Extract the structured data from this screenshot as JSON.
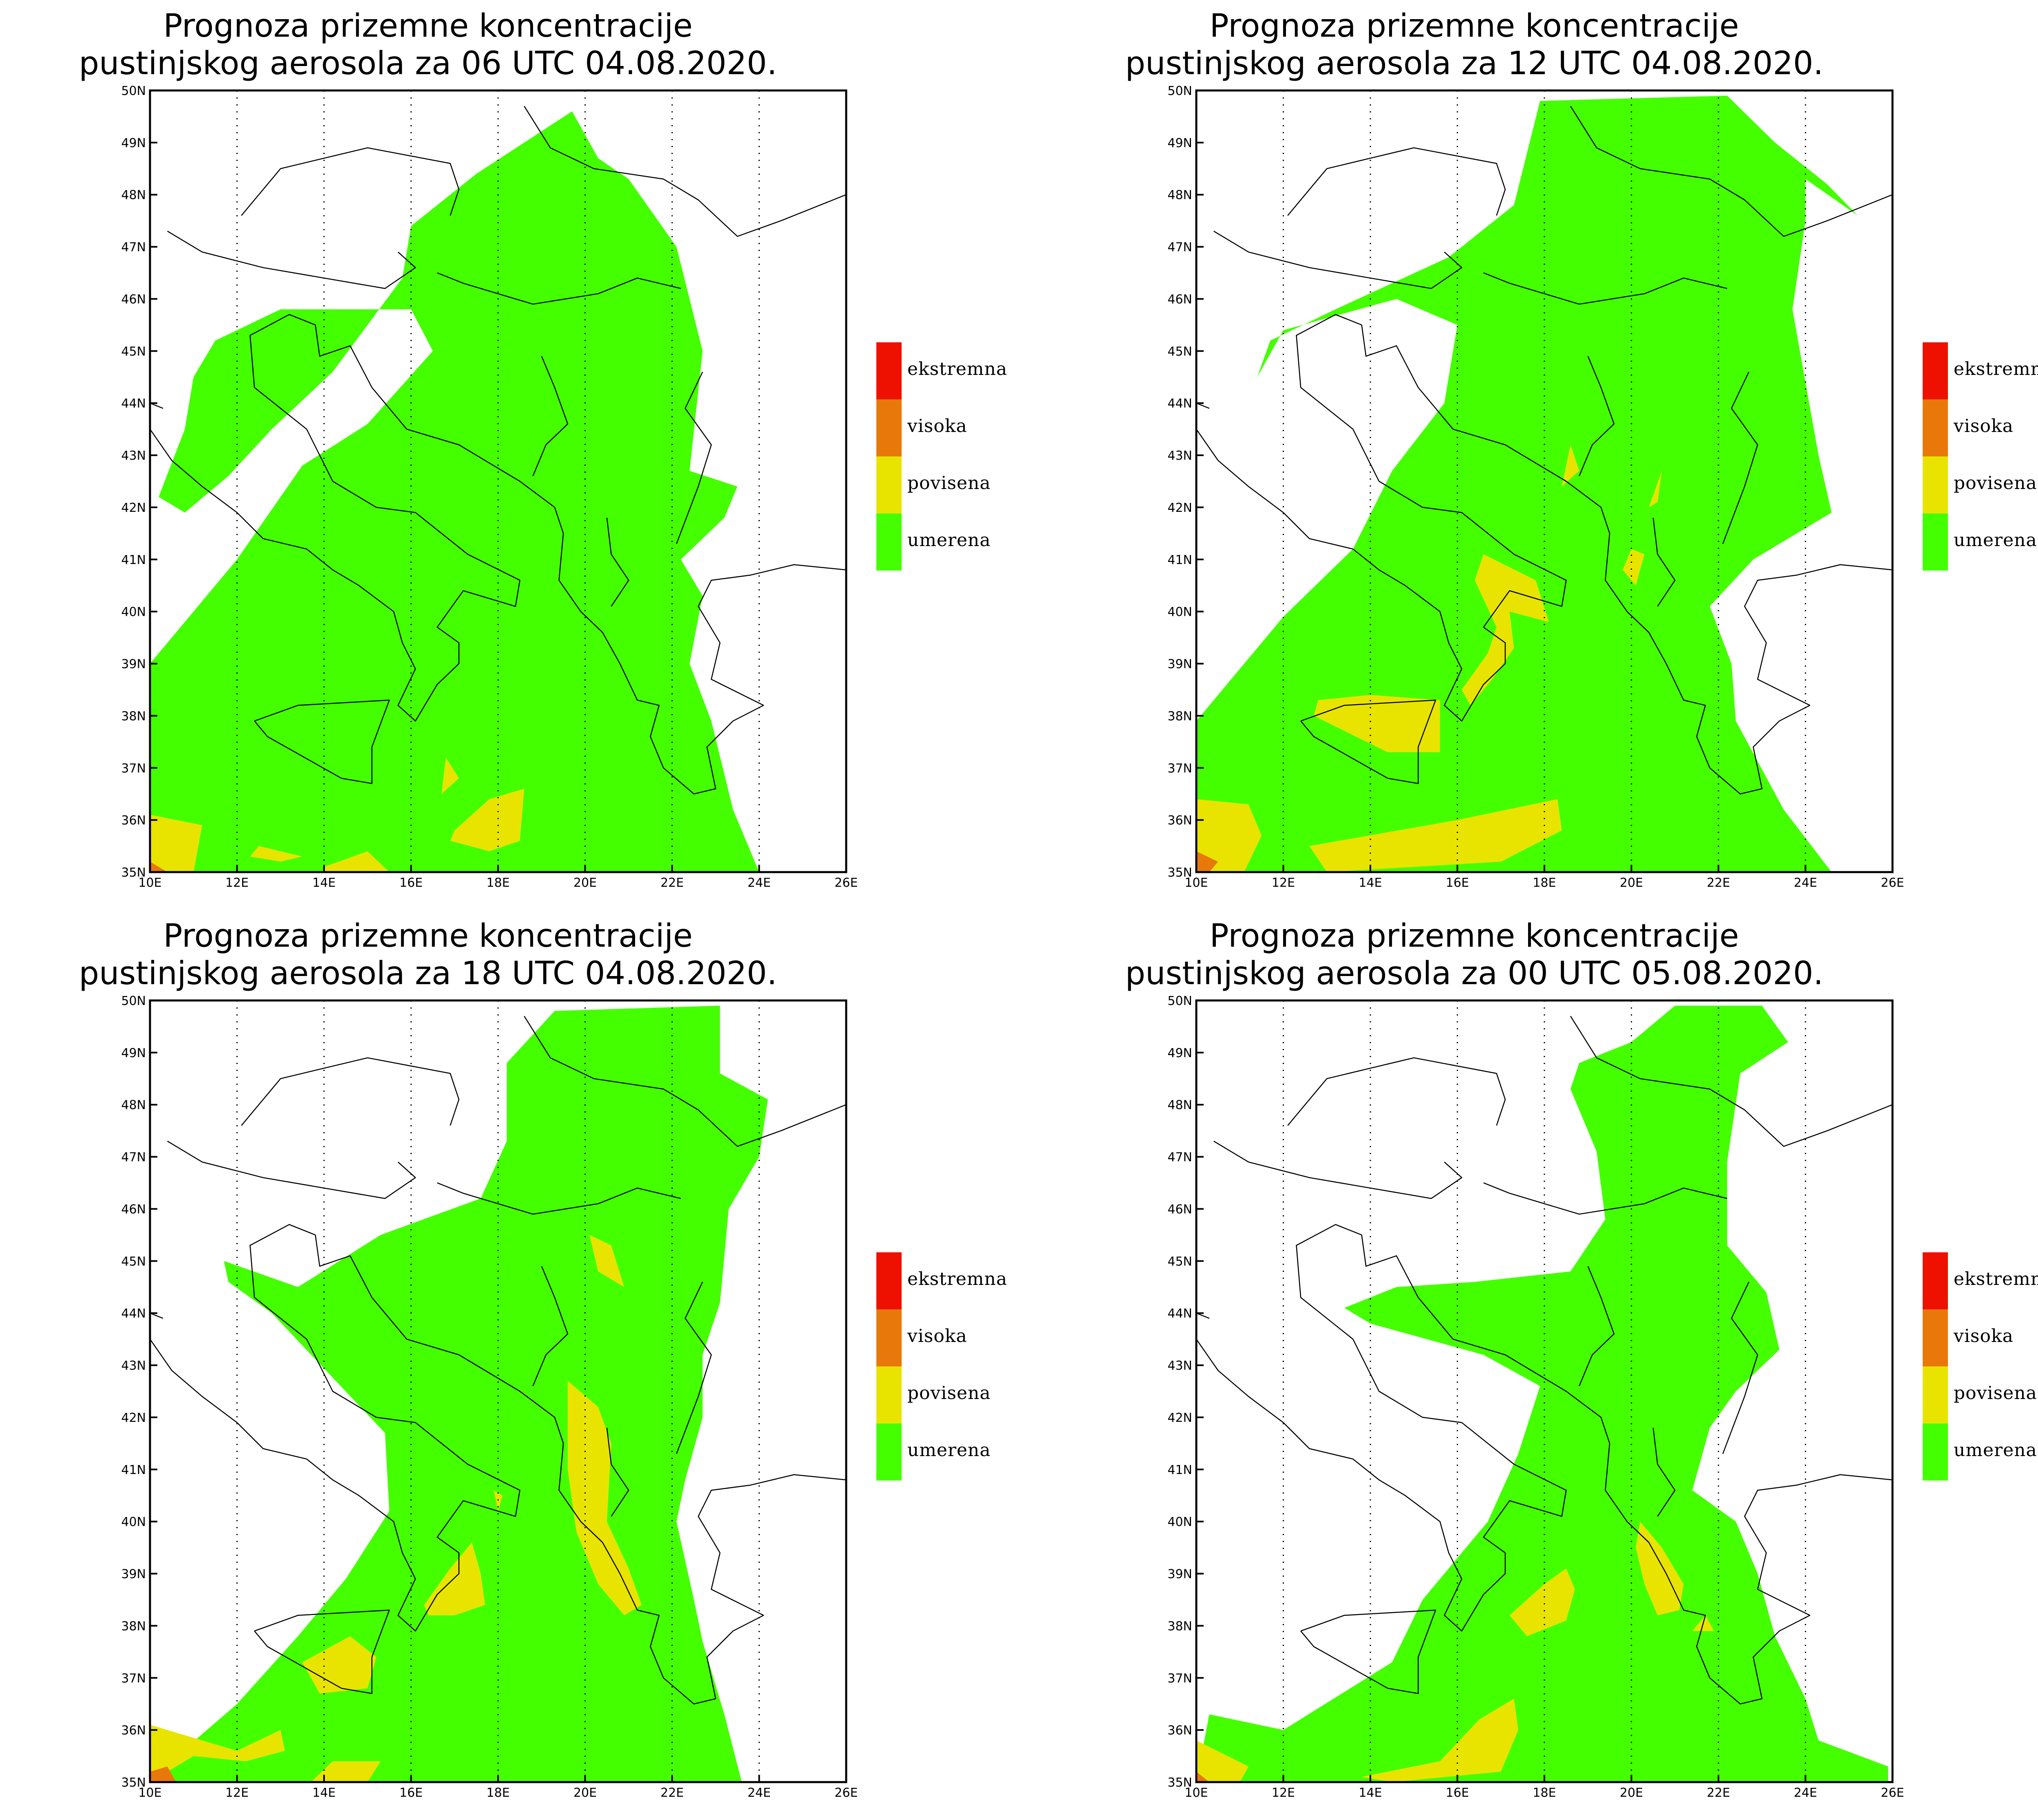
{
  "axes": {
    "lon_ticks": [
      "10E",
      "12E",
      "14E",
      "16E",
      "18E",
      "20E",
      "22E",
      "24E",
      "26E"
    ],
    "lat_ticks": [
      "35N",
      "36N",
      "37N",
      "38N",
      "39N",
      "40N",
      "41N",
      "42N",
      "43N",
      "44N",
      "45N",
      "46N",
      "47N",
      "48N",
      "49N",
      "50N"
    ],
    "lon_range": [
      10,
      26
    ],
    "lat_range": [
      35,
      50
    ]
  },
  "legend": {
    "items": [
      {
        "label": "ekstremna",
        "color": "#ee1100"
      },
      {
        "label": "visoka",
        "color": "#e8780a"
      },
      {
        "label": "povisena",
        "color": "#e8e400"
      },
      {
        "label": "umerena",
        "color": "#44ff00"
      }
    ]
  },
  "panels": [
    {
      "title_line1": "Prognoza prizemne koncentracije",
      "title_line2": "pustinjskog aerosola za 06 UTC 04.08.2020.",
      "umerena": [
        [
          10,
          39
        ],
        [
          12,
          41
        ],
        [
          13.5,
          42.8
        ],
        [
          15,
          43.6
        ],
        [
          16.5,
          45
        ],
        [
          16,
          45.8
        ],
        [
          13,
          45.8
        ],
        [
          11.5,
          45.2
        ],
        [
          11,
          44.5
        ],
        [
          10.8,
          43.5
        ],
        [
          10.2,
          42.2
        ],
        [
          10.8,
          41.9
        ],
        [
          11.8,
          42.6
        ],
        [
          12.8,
          43.5
        ],
        [
          14.2,
          44.6
        ],
        [
          15.8,
          46.4
        ],
        [
          16,
          47.4
        ],
        [
          17.5,
          48.4
        ],
        [
          19.7,
          49.6
        ],
        [
          20.3,
          48.7
        ],
        [
          21,
          48.3
        ],
        [
          22.1,
          47
        ],
        [
          22.7,
          45
        ],
        [
          22.4,
          42.7
        ],
        [
          23.5,
          42.4
        ],
        [
          23.2,
          41.8
        ],
        [
          22.2,
          41
        ],
        [
          22.7,
          40.3
        ],
        [
          22.4,
          39
        ],
        [
          22.9,
          37.9
        ],
        [
          23.4,
          36.2
        ],
        [
          24,
          35
        ],
        [
          10,
          35
        ]
      ],
      "povisena": [
        [
          [
            10,
            36.1
          ],
          [
            11.2,
            35.9
          ],
          [
            11,
            35
          ],
          [
            10,
            35
          ]
        ],
        [
          [
            12.5,
            35.5
          ],
          [
            13.5,
            35.3
          ],
          [
            13,
            35.2
          ],
          [
            12.3,
            35.3
          ]
        ],
        [
          [
            14,
            35.1
          ],
          [
            15,
            35.4
          ],
          [
            15.5,
            35
          ],
          [
            14,
            35
          ]
        ],
        [
          [
            17,
            35.8
          ],
          [
            17.8,
            36.4
          ],
          [
            18.6,
            36.6
          ],
          [
            18.5,
            35.6
          ],
          [
            17.8,
            35.4
          ],
          [
            16.9,
            35.6
          ]
        ],
        [
          [
            16.8,
            37.2
          ],
          [
            17.1,
            36.8
          ],
          [
            16.7,
            36.5
          ]
        ]
      ],
      "visoka": [
        [
          [
            10,
            35
          ],
          [
            10.4,
            35
          ],
          [
            10,
            35.2
          ]
        ]
      ]
    },
    {
      "title_line1": "Prognoza prizemne koncentracije",
      "title_line2": "pustinjskog aerosola za 12 UTC 04.08.2020.",
      "umerena": [
        [
          10,
          37.9
        ],
        [
          12,
          39.9
        ],
        [
          13.6,
          41.2
        ],
        [
          14.5,
          42.7
        ],
        [
          15.7,
          44
        ],
        [
          16,
          45.5
        ],
        [
          14.6,
          46
        ],
        [
          12,
          45.4
        ],
        [
          11.4,
          44.5
        ],
        [
          11.7,
          45.2
        ],
        [
          13.2,
          45.8
        ],
        [
          15.8,
          46.8
        ],
        [
          17.3,
          47.8
        ],
        [
          17.9,
          49.8
        ],
        [
          22.2,
          49.9
        ],
        [
          23.3,
          49
        ],
        [
          24.5,
          48.2
        ],
        [
          25.2,
          47.6
        ],
        [
          24,
          48.3
        ],
        [
          24,
          47.5
        ],
        [
          23.7,
          45.8
        ],
        [
          24.3,
          43
        ],
        [
          24.6,
          41.9
        ],
        [
          22.8,
          41
        ],
        [
          21.8,
          40.1
        ],
        [
          22.3,
          39
        ],
        [
          22.4,
          37.9
        ],
        [
          23.5,
          36.2
        ],
        [
          24.6,
          35
        ],
        [
          10,
          35
        ]
      ],
      "povisena": [
        [
          [
            10,
            36.4
          ],
          [
            11.2,
            36.3
          ],
          [
            11.5,
            35.7
          ],
          [
            11.1,
            35
          ],
          [
            10,
            35
          ]
        ],
        [
          [
            12.6,
            35.5
          ],
          [
            16,
            36
          ],
          [
            18.3,
            36.4
          ],
          [
            18.4,
            35.8
          ],
          [
            17,
            35.2
          ],
          [
            13,
            35
          ]
        ],
        [
          [
            12.7,
            38
          ],
          [
            14.4,
            37.3
          ],
          [
            15.6,
            37.3
          ],
          [
            15.6,
            38.3
          ],
          [
            14,
            38.4
          ],
          [
            12.8,
            38.3
          ]
        ],
        [
          [
            16.3,
            38.2
          ],
          [
            16.8,
            38.7
          ],
          [
            17.3,
            39.3
          ],
          [
            17.2,
            40
          ],
          [
            18.1,
            39.8
          ],
          [
            17.8,
            40.6
          ],
          [
            16.6,
            41.1
          ],
          [
            16.4,
            40.6
          ],
          [
            16.9,
            39.7
          ],
          [
            16.7,
            39.2
          ],
          [
            16.1,
            38.5
          ]
        ],
        [
          [
            20,
            41.2
          ],
          [
            20.3,
            41.1
          ],
          [
            20.1,
            40.5
          ],
          [
            19.8,
            40.8
          ]
        ],
        [
          [
            18.4,
            42.4
          ],
          [
            18.6,
            43.2
          ],
          [
            18.8,
            42.7
          ]
        ],
        [
          [
            20.4,
            42
          ],
          [
            20.7,
            42.7
          ],
          [
            20.6,
            42.1
          ]
        ]
      ],
      "visoka": [
        [
          [
            10,
            35.4
          ],
          [
            10.5,
            35.2
          ],
          [
            10.3,
            35
          ],
          [
            10,
            35
          ]
        ]
      ]
    },
    {
      "title_line1": "Prognoza prizemne koncentracije",
      "title_line2": "pustinjskog aerosola za 18 UTC 04.08.2020.",
      "umerena": [
        [
          10.2,
          35.2
        ],
        [
          12,
          36.5
        ],
        [
          13.4,
          37.8
        ],
        [
          14.5,
          38.9
        ],
        [
          15.5,
          40.2
        ],
        [
          15.4,
          41.7
        ],
        [
          12.8,
          44
        ],
        [
          11.8,
          44.6
        ],
        [
          11.7,
          45
        ],
        [
          13.4,
          44.5
        ],
        [
          15.3,
          45.5
        ],
        [
          17.6,
          46.2
        ],
        [
          18.2,
          47.3
        ],
        [
          18.2,
          48.8
        ],
        [
          19.3,
          49.8
        ],
        [
          23.1,
          49.9
        ],
        [
          23.1,
          48.6
        ],
        [
          24.2,
          48.1
        ],
        [
          24,
          47
        ],
        [
          23.3,
          46
        ],
        [
          23.1,
          44.2
        ],
        [
          22.7,
          43.2
        ],
        [
          22.7,
          42
        ],
        [
          22.3,
          40.8
        ],
        [
          22.1,
          40
        ],
        [
          22.5,
          38.5
        ],
        [
          22.7,
          37.7
        ],
        [
          23.2,
          36.3
        ],
        [
          23.6,
          35
        ],
        [
          10.2,
          35
        ]
      ],
      "povisena": [
        [
          [
            10,
            36.1
          ],
          [
            12,
            35.6
          ],
          [
            13,
            36
          ],
          [
            13.1,
            35.6
          ],
          [
            12.2,
            35.4
          ],
          [
            11,
            35.5
          ],
          [
            10,
            35
          ]
        ],
        [
          [
            13.7,
            35
          ],
          [
            14.2,
            35.4
          ],
          [
            15.3,
            35.4
          ],
          [
            15,
            35
          ]
        ],
        [
          [
            13.5,
            37.3
          ],
          [
            14.6,
            37.8
          ],
          [
            15.2,
            37.4
          ],
          [
            15,
            36.8
          ],
          [
            13.9,
            36.7
          ]
        ],
        [
          [
            16.3,
            38.4
          ],
          [
            16.9,
            39.1
          ],
          [
            17.4,
            39.6
          ],
          [
            17.6,
            39
          ],
          [
            17.7,
            38.4
          ],
          [
            17,
            38.2
          ],
          [
            16.4,
            38.2
          ]
        ],
        [
          [
            19.6,
            42.7
          ],
          [
            20.3,
            42.2
          ],
          [
            20.6,
            41.5
          ],
          [
            20.5,
            40
          ],
          [
            21,
            39.1
          ],
          [
            21.3,
            38.4
          ],
          [
            20.9,
            38.2
          ],
          [
            20.3,
            38.8
          ],
          [
            19.8,
            39.8
          ],
          [
            19.6,
            41
          ]
        ],
        [
          [
            20.1,
            45.5
          ],
          [
            20.6,
            45.3
          ],
          [
            20.9,
            44.5
          ],
          [
            20.3,
            44.8
          ]
        ],
        [
          [
            17.9,
            40.6
          ],
          [
            18,
            40.2
          ],
          [
            18.1,
            40.5
          ]
        ]
      ],
      "visoka": [
        [
          [
            10,
            35
          ],
          [
            10.6,
            35
          ],
          [
            10.4,
            35.3
          ],
          [
            10,
            35.2
          ]
        ]
      ]
    },
    {
      "title_line1": "Prognoza prizemne koncentracije",
      "title_line2": "pustinjskog aerosola za 00 UTC 05.08.2020.",
      "umerena": [
        [
          10,
          35
        ],
        [
          10.3,
          36.3
        ],
        [
          12,
          36
        ],
        [
          14.5,
          37.3
        ],
        [
          15.2,
          38.5
        ],
        [
          16.7,
          40
        ],
        [
          17.4,
          41.3
        ],
        [
          17.9,
          42.6
        ],
        [
          16.6,
          43.2
        ],
        [
          14,
          43.8
        ],
        [
          13.4,
          44.1
        ],
        [
          14.6,
          44.5
        ],
        [
          16.4,
          44.6
        ],
        [
          18.6,
          44.8
        ],
        [
          19.4,
          45.8
        ],
        [
          19.2,
          47.1
        ],
        [
          18.6,
          48.3
        ],
        [
          18.8,
          48.8
        ],
        [
          20,
          49.2
        ],
        [
          21,
          49.9
        ],
        [
          23,
          49.9
        ],
        [
          23.6,
          49.2
        ],
        [
          22.5,
          48.6
        ],
        [
          22.2,
          46.9
        ],
        [
          22.2,
          45.3
        ],
        [
          23.1,
          44.4
        ],
        [
          23.4,
          43.3
        ],
        [
          22.4,
          42.5
        ],
        [
          21.8,
          41.8
        ],
        [
          21.4,
          40.6
        ],
        [
          22.4,
          40
        ],
        [
          22.9,
          39
        ],
        [
          23.3,
          37.8
        ],
        [
          24,
          36.6
        ],
        [
          24.3,
          35.8
        ],
        [
          25.9,
          35.3
        ],
        [
          25.9,
          35
        ],
        [
          10,
          35
        ]
      ],
      "povisena": [
        [
          [
            10,
            35.8
          ],
          [
            11.2,
            35.3
          ],
          [
            11,
            35
          ],
          [
            10,
            35
          ]
        ],
        [
          [
            13.8,
            35.1
          ],
          [
            15.6,
            35.4
          ],
          [
            16.5,
            36.2
          ],
          [
            17.3,
            36.6
          ],
          [
            17.4,
            36
          ],
          [
            17,
            35.2
          ],
          [
            14.5,
            35
          ]
        ],
        [
          [
            17.2,
            38.2
          ],
          [
            18,
            38.8
          ],
          [
            18.5,
            39.1
          ],
          [
            18.7,
            38.7
          ],
          [
            18.5,
            38.1
          ],
          [
            17.6,
            37.8
          ]
        ],
        [
          [
            20.2,
            40
          ],
          [
            20.7,
            39.5
          ],
          [
            21.2,
            38.8
          ],
          [
            21.1,
            38.3
          ],
          [
            20.6,
            38.2
          ],
          [
            20.3,
            38.8
          ],
          [
            20.1,
            39.5
          ]
        ],
        [
          [
            21.4,
            37.9
          ],
          [
            21.7,
            38.2
          ],
          [
            21.9,
            37.9
          ]
        ]
      ],
      "visoka": [
        [
          [
            10,
            35
          ],
          [
            10.3,
            35
          ],
          [
            10,
            35.2
          ]
        ]
      ]
    }
  ]
}
